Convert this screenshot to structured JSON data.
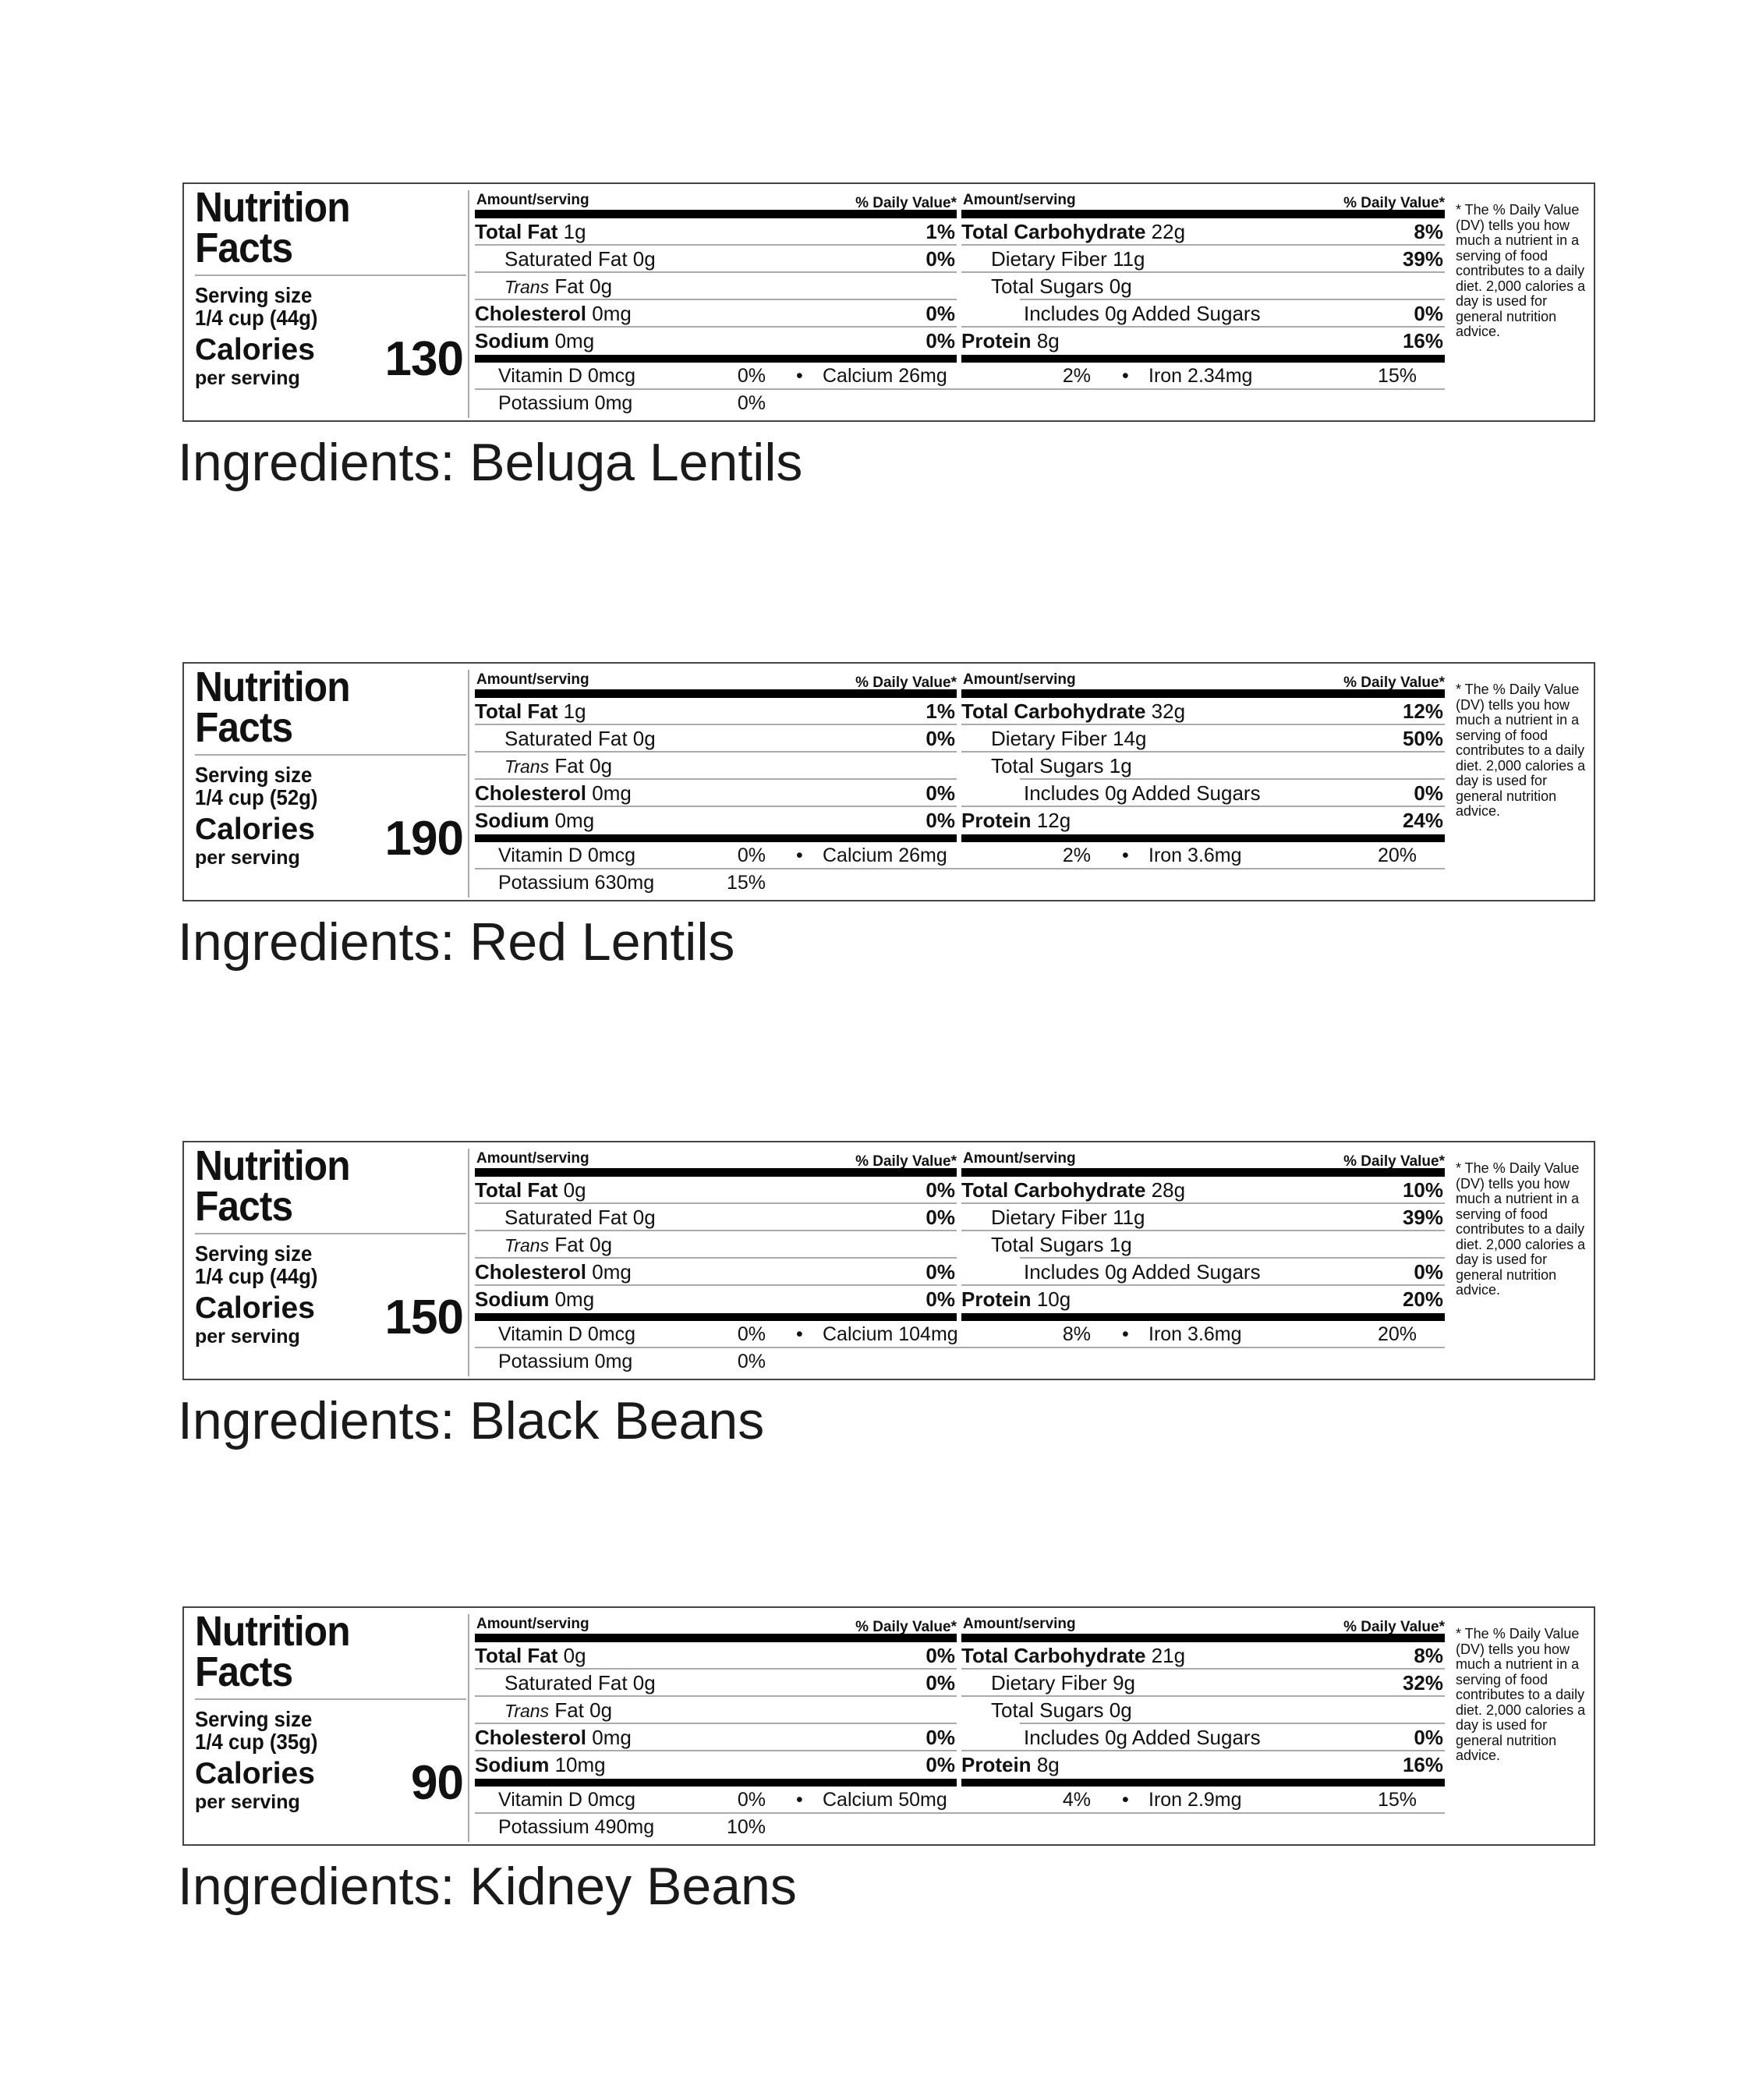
{
  "common": {
    "title_line1": "Nutrition",
    "title_line2": "Facts",
    "serving_size_label": "Serving size",
    "calories_label": "Calories",
    "per_serving": "per serving",
    "amount_serving": "Amount/serving",
    "daily_value": "% Daily Value*",
    "total_fat": "Total Fat",
    "saturated_fat": "Saturated Fat",
    "trans_italic": "Trans",
    "trans_rest": "Fat",
    "cholesterol": "Cholesterol",
    "sodium": "Sodium",
    "total_carb": "Total Carbohydrate",
    "fiber": "Dietary Fiber",
    "sugars": "Total Sugars",
    "includes": "Includes",
    "added_sugars": "Added Sugars",
    "protein": "Protein",
    "vitamin_d": "Vitamin D",
    "calcium": "Calcium",
    "iron": "Iron",
    "potassium": "Potassium",
    "bullet": "•",
    "footnote": "* The % Daily Value (DV) tells you how much a nutrient in a serving of food contributes to a daily diet. 2,000 calories a day is used for general nutrition advice."
  },
  "labels": [
    {
      "serving_size": "1/4 cup (44g)",
      "calories": "130",
      "total_fat": "1g",
      "total_fat_dv": "1%",
      "sat_fat": "0g",
      "sat_fat_dv": "0%",
      "trans_fat": "0g",
      "cholesterol": "0mg",
      "cholesterol_dv": "0%",
      "sodium": "0mg",
      "sodium_dv": "0%",
      "total_carb": "22g",
      "total_carb_dv": "8%",
      "fiber": "11g",
      "fiber_dv": "39%",
      "sugars": "0g",
      "added_sugars": "0g",
      "added_sugars_dv": "0%",
      "protein": "8g",
      "protein_dv": "16%",
      "vitamin_d": "0mcg",
      "vitamin_d_dv": "0%",
      "calcium": "26mg",
      "calcium_dv": "2%",
      "iron": "2.34mg",
      "iron_dv": "15%",
      "potassium": "0mg",
      "potassium_dv": "0%",
      "ingredients": "Ingredients: Beluga Lentils"
    },
    {
      "serving_size": "1/4 cup (52g)",
      "calories": "190",
      "total_fat": "1g",
      "total_fat_dv": "1%",
      "sat_fat": "0g",
      "sat_fat_dv": "0%",
      "trans_fat": "0g",
      "cholesterol": "0mg",
      "cholesterol_dv": "0%",
      "sodium": "0mg",
      "sodium_dv": "0%",
      "total_carb": "32g",
      "total_carb_dv": "12%",
      "fiber": "14g",
      "fiber_dv": "50%",
      "sugars": "1g",
      "added_sugars": "0g",
      "added_sugars_dv": "0%",
      "protein": "12g",
      "protein_dv": "24%",
      "vitamin_d": "0mcg",
      "vitamin_d_dv": "0%",
      "calcium": "26mg",
      "calcium_dv": "2%",
      "iron": "3.6mg",
      "iron_dv": "20%",
      "potassium": "630mg",
      "potassium_dv": "15%",
      "ingredients": "Ingredients: Red Lentils"
    },
    {
      "serving_size": "1/4 cup (44g)",
      "calories": "150",
      "total_fat": "0g",
      "total_fat_dv": "0%",
      "sat_fat": "0g",
      "sat_fat_dv": "0%",
      "trans_fat": "0g",
      "cholesterol": "0mg",
      "cholesterol_dv": "0%",
      "sodium": "0mg",
      "sodium_dv": "0%",
      "total_carb": "28g",
      "total_carb_dv": "10%",
      "fiber": "11g",
      "fiber_dv": "39%",
      "sugars": "1g",
      "added_sugars": "0g",
      "added_sugars_dv": "0%",
      "protein": "10g",
      "protein_dv": "20%",
      "vitamin_d": "0mcg",
      "vitamin_d_dv": "0%",
      "calcium": "104mg",
      "calcium_dv": "8%",
      "iron": "3.6mg",
      "iron_dv": "20%",
      "potassium": "0mg",
      "potassium_dv": "0%",
      "ingredients": "Ingredients: Black Beans"
    },
    {
      "serving_size": "1/4 cup (35g)",
      "calories": "90",
      "total_fat": "0g",
      "total_fat_dv": "0%",
      "sat_fat": "0g",
      "sat_fat_dv": "0%",
      "trans_fat": "0g",
      "cholesterol": "0mg",
      "cholesterol_dv": "0%",
      "sodium": "10mg",
      "sodium_dv": "0%",
      "total_carb": "21g",
      "total_carb_dv": "8%",
      "fiber": "9g",
      "fiber_dv": "32%",
      "sugars": "0g",
      "added_sugars": "0g",
      "added_sugars_dv": "0%",
      "protein": "8g",
      "protein_dv": "16%",
      "vitamin_d": "0mcg",
      "vitamin_d_dv": "0%",
      "calcium": "50mg",
      "calcium_dv": "4%",
      "iron": "2.9mg",
      "iron_dv": "15%",
      "potassium": "490mg",
      "potassium_dv": "10%",
      "ingredients": "Ingredients: Kidney Beans"
    }
  ]
}
